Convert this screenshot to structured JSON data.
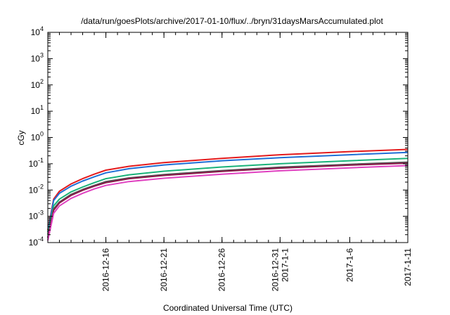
{
  "chart_data": {
    "type": "line",
    "title": "/data/run/goesPlots/archive/2017-01-10/flux/../bryn/31daysMarsAccumulated.plot",
    "xlabel": "Coordinated Universal Time (UTC)",
    "ylabel": "cGy",
    "y_scale": "log",
    "ylim": [
      0.0001,
      10000
    ],
    "xlim": [
      "2016-12-11",
      "2017-01-11"
    ],
    "grid": false,
    "legend": "none",
    "y_ticks": [
      {
        "value": 0.0001,
        "base": "10",
        "exp": "-4"
      },
      {
        "value": 0.001,
        "base": "10",
        "exp": "-3"
      },
      {
        "value": 0.01,
        "base": "10",
        "exp": "-2"
      },
      {
        "value": 0.1,
        "base": "10",
        "exp": "-1"
      },
      {
        "value": 1,
        "base": "10",
        "exp": "0"
      },
      {
        "value": 10,
        "base": "10",
        "exp": "1"
      },
      {
        "value": 100,
        "base": "10",
        "exp": "2"
      },
      {
        "value": 1000,
        "base": "10",
        "exp": "3"
      },
      {
        "value": 10000,
        "base": "10",
        "exp": "4"
      }
    ],
    "x_ticks": [
      {
        "date": "2016-12-16",
        "label": "2016-12-16"
      },
      {
        "date": "2016-12-21",
        "label": "2016-12-21"
      },
      {
        "date": "2016-12-26",
        "label": "2016-12-26"
      },
      {
        "date": "2016-12-31",
        "label": "2016-12-31",
        "label2": "2017-1-1"
      },
      {
        "date": "2017-01-06",
        "label": "2017-1-6"
      },
      {
        "date": "2017-01-11",
        "label": "2017-1-11"
      }
    ],
    "series": [
      {
        "color": "#e41a1c",
        "x": [
          "2016-12-11",
          "2016-12-11T12:00",
          "2016-12-12",
          "2016-12-13",
          "2016-12-14",
          "2016-12-15",
          "2016-12-16",
          "2016-12-18",
          "2016-12-21",
          "2016-12-26",
          "2016-12-31",
          "2017-01-06",
          "2017-01-11"
        ],
        "y": [
          0.0003,
          0.0045,
          0.009,
          0.017,
          0.027,
          0.04,
          0.057,
          0.08,
          0.11,
          0.16,
          0.22,
          0.29,
          0.35
        ]
      },
      {
        "color": "#1f6fd6",
        "x": [
          "2016-12-11",
          "2016-12-11T12:00",
          "2016-12-12",
          "2016-12-13",
          "2016-12-14",
          "2016-12-15",
          "2016-12-16",
          "2016-12-18",
          "2016-12-21",
          "2016-12-26",
          "2016-12-31",
          "2017-01-06",
          "2017-01-11"
        ],
        "y": [
          0.00025,
          0.004,
          0.0075,
          0.014,
          0.022,
          0.032,
          0.045,
          0.065,
          0.09,
          0.13,
          0.17,
          0.22,
          0.27
        ]
      },
      {
        "color": "#19b37a",
        "x": [
          "2016-12-11",
          "2016-12-11T12:00",
          "2016-12-12",
          "2016-12-13",
          "2016-12-14",
          "2016-12-15",
          "2016-12-16",
          "2016-12-18",
          "2016-12-21",
          "2016-12-26",
          "2016-12-31",
          "2017-01-06",
          "2017-01-11"
        ],
        "y": [
          0.0002,
          0.0025,
          0.0045,
          0.0085,
          0.013,
          0.019,
          0.027,
          0.038,
          0.052,
          0.075,
          0.1,
          0.13,
          0.16
        ]
      },
      {
        "color": "#555555",
        "x": [
          "2016-12-11",
          "2016-12-11T12:00",
          "2016-12-12",
          "2016-12-13",
          "2016-12-14",
          "2016-12-15",
          "2016-12-16",
          "2016-12-18",
          "2016-12-21",
          "2016-12-26",
          "2016-12-31",
          "2017-01-06",
          "2017-01-11"
        ],
        "y": [
          0.00016,
          0.0019,
          0.0035,
          0.0068,
          0.0105,
          0.015,
          0.021,
          0.029,
          0.039,
          0.055,
          0.074,
          0.095,
          0.115
        ]
      },
      {
        "color": "#8b1a4a",
        "x": [
          "2016-12-11",
          "2016-12-11T12:00",
          "2016-12-12",
          "2016-12-13",
          "2016-12-14",
          "2016-12-15",
          "2016-12-16",
          "2016-12-18",
          "2016-12-21",
          "2016-12-26",
          "2016-12-31",
          "2017-01-06",
          "2017-01-11"
        ],
        "y": [
          0.00015,
          0.0017,
          0.0032,
          0.0062,
          0.0097,
          0.014,
          0.019,
          0.027,
          0.036,
          0.051,
          0.068,
          0.088,
          0.105
        ]
      },
      {
        "color": "#e040c0",
        "x": [
          "2016-12-11",
          "2016-12-11T12:00",
          "2016-12-12",
          "2016-12-13",
          "2016-12-14",
          "2016-12-15",
          "2016-12-16",
          "2016-12-18",
          "2016-12-21",
          "2016-12-26",
          "2016-12-31",
          "2017-01-06",
          "2017-01-11"
        ],
        "y": [
          0.00012,
          0.0013,
          0.0025,
          0.0048,
          0.0075,
          0.011,
          0.015,
          0.021,
          0.028,
          0.04,
          0.054,
          0.07,
          0.085
        ]
      }
    ]
  }
}
